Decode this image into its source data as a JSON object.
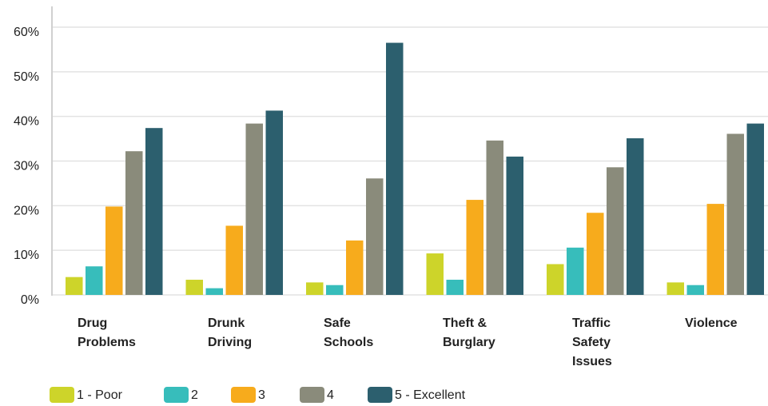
{
  "chart_data": {
    "type": "bar",
    "title": "",
    "xlabel": "",
    "ylabel": "",
    "ylim": [
      0,
      60
    ],
    "y_tick_labels": [
      "0%",
      "10%",
      "20%",
      "30%",
      "40%",
      "50%",
      "60%"
    ],
    "categories": [
      [
        "Drug",
        "Problems"
      ],
      [
        "Drunk",
        "Driving"
      ],
      [
        "Safe",
        "Schools"
      ],
      [
        "Theft &",
        "Burglary"
      ],
      [
        "Traffic",
        "Safety",
        "Issues"
      ],
      [
        "Violence"
      ]
    ],
    "series": [
      {
        "name": "1 - Poor",
        "color": "#cdd42a",
        "values": [
          4.0,
          3.4,
          2.8,
          9.3,
          6.9,
          2.8
        ]
      },
      {
        "name": "2",
        "color": "#37bdbb",
        "values": [
          6.4,
          1.5,
          2.2,
          3.4,
          10.6,
          2.2
        ]
      },
      {
        "name": "3",
        "color": "#f7ab1c",
        "values": [
          19.8,
          15.5,
          12.2,
          21.3,
          18.4,
          20.4
        ]
      },
      {
        "name": "4",
        "color": "#8a8b7b",
        "values": [
          32.2,
          38.4,
          26.1,
          34.6,
          28.6,
          36.1
        ]
      },
      {
        "name": "5 - Excellent",
        "color": "#2c5f6e",
        "values": [
          37.4,
          41.3,
          56.5,
          31.0,
          35.1,
          38.4
        ]
      }
    ],
    "grid": true,
    "legend_position": "bottom"
  }
}
